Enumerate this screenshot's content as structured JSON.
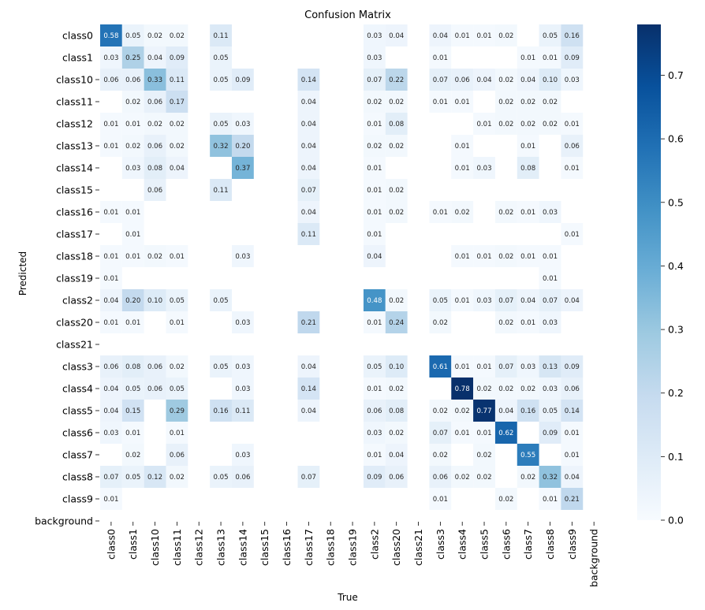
{
  "chart_data": {
    "type": "heatmap",
    "title": "Confusion Matrix",
    "xlabel": "True",
    "ylabel": "Predicted",
    "labels": [
      "class0",
      "class1",
      "class10",
      "class11",
      "class12",
      "class13",
      "class14",
      "class15",
      "class16",
      "class17",
      "class18",
      "class19",
      "class2",
      "class20",
      "class21",
      "class3",
      "class4",
      "class5",
      "class6",
      "class7",
      "class8",
      "class9",
      "background"
    ],
    "colormap": "Blues",
    "colors": {
      "low": "#f7fbff",
      "high": "#08306b"
    },
    "colorbar": {
      "min": 0.0,
      "max": 0.78,
      "ticks": [
        "0.0",
        "0.1",
        "0.2",
        "0.3",
        "0.4",
        "0.5",
        "0.6",
        "0.7"
      ]
    },
    "matrix": [
      [
        "0.58",
        "0.05",
        "0.02",
        "0.02",
        "",
        "0.11",
        "",
        "",
        "",
        "",
        "",
        "",
        "0.03",
        "0.04",
        "",
        "0.04",
        "0.01",
        "0.01",
        "0.02",
        "",
        "0.05",
        "0.16",
        ""
      ],
      [
        "0.03",
        "0.25",
        "0.04",
        "0.09",
        "",
        "0.05",
        "",
        "",
        "",
        "",
        "",
        "",
        "0.03",
        "",
        "",
        "0.01",
        "",
        "",
        "",
        "0.01",
        "0.01",
        "0.09",
        ""
      ],
      [
        "0.06",
        "0.06",
        "0.33",
        "0.11",
        "",
        "0.05",
        "0.09",
        "",
        "",
        "0.14",
        "",
        "",
        "0.07",
        "0.22",
        "",
        "0.07",
        "0.06",
        "0.04",
        "0.02",
        "0.04",
        "0.10",
        "0.03",
        ""
      ],
      [
        "",
        "0.02",
        "0.06",
        "0.17",
        "",
        "",
        "",
        "",
        "",
        "0.04",
        "",
        "",
        "0.02",
        "0.02",
        "",
        "0.01",
        "0.01",
        "",
        "0.02",
        "0.02",
        "0.02",
        "",
        ""
      ],
      [
        "0.01",
        "0.01",
        "0.02",
        "0.02",
        "",
        "0.05",
        "0.03",
        "",
        "",
        "0.04",
        "",
        "",
        "0.01",
        "0.08",
        "",
        "",
        "",
        "0.01",
        "0.02",
        "0.02",
        "0.02",
        "0.01",
        ""
      ],
      [
        "0.01",
        "0.02",
        "0.06",
        "0.02",
        "",
        "0.32",
        "0.20",
        "",
        "",
        "0.04",
        "",
        "",
        "0.02",
        "0.02",
        "",
        "",
        "0.01",
        "",
        "",
        "0.01",
        "",
        "0.06",
        ""
      ],
      [
        "",
        "0.03",
        "0.08",
        "0.04",
        "",
        "",
        "0.37",
        "",
        "",
        "0.04",
        "",
        "",
        "0.01",
        "",
        "",
        "",
        "0.01",
        "0.03",
        "",
        "0.08",
        "",
        "0.01",
        ""
      ],
      [
        "",
        "",
        "0.06",
        "",
        "",
        "0.11",
        "",
        "",
        "",
        "0.07",
        "",
        "",
        "0.01",
        "0.02",
        "",
        "",
        "",
        "",
        "",
        "",
        "",
        "",
        ""
      ],
      [
        "0.01",
        "0.01",
        "",
        "",
        "",
        "",
        "",
        "",
        "",
        "0.04",
        "",
        "",
        "0.01",
        "0.02",
        "",
        "0.01",
        "0.02",
        "",
        "0.02",
        "0.01",
        "0.03",
        "",
        ""
      ],
      [
        "",
        "0.01",
        "",
        "",
        "",
        "",
        "",
        "",
        "",
        "0.11",
        "",
        "",
        "0.01",
        "",
        "",
        "",
        "",
        "",
        "",
        "",
        "",
        "0.01",
        ""
      ],
      [
        "0.01",
        "0.01",
        "0.02",
        "0.01",
        "",
        "",
        "0.03",
        "",
        "",
        "",
        "",
        "",
        "0.04",
        "",
        "",
        "",
        "0.01",
        "0.01",
        "0.02",
        "0.01",
        "0.01",
        "",
        ""
      ],
      [
        "0.01",
        "",
        "",
        "",
        "",
        "",
        "",
        "",
        "",
        "",
        "",
        "",
        "",
        "",
        "",
        "",
        "",
        "",
        "",
        "",
        "0.01",
        "",
        ""
      ],
      [
        "0.04",
        "0.20",
        "0.10",
        "0.05",
        "",
        "0.05",
        "",
        "",
        "",
        "",
        "",
        "",
        "0.48",
        "0.02",
        "",
        "0.05",
        "0.01",
        "0.03",
        "0.07",
        "0.04",
        "0.07",
        "0.04",
        ""
      ],
      [
        "0.01",
        "0.01",
        "",
        "0.01",
        "",
        "",
        "0.03",
        "",
        "",
        "0.21",
        "",
        "",
        "0.01",
        "0.24",
        "",
        "0.02",
        "",
        "",
        "0.02",
        "0.01",
        "0.03",
        "",
        ""
      ],
      [
        "",
        "",
        "",
        "",
        "",
        "",
        "",
        "",
        "",
        "",
        "",
        "",
        "",
        "",
        "",
        "",
        "",
        "",
        "",
        "",
        "",
        "",
        ""
      ],
      [
        "0.06",
        "0.08",
        "0.06",
        "0.02",
        "",
        "0.05",
        "0.03",
        "",
        "",
        "0.04",
        "",
        "",
        "0.05",
        "0.10",
        "",
        "0.61",
        "0.01",
        "0.01",
        "0.07",
        "0.03",
        "0.13",
        "0.09",
        ""
      ],
      [
        "0.04",
        "0.05",
        "0.06",
        "0.05",
        "",
        "",
        "0.03",
        "",
        "",
        "0.14",
        "",
        "",
        "0.01",
        "0.02",
        "",
        "",
        "0.78",
        "0.02",
        "0.02",
        "0.02",
        "0.03",
        "0.06",
        ""
      ],
      [
        "0.04",
        "0.15",
        "",
        "0.29",
        "",
        "0.16",
        "0.11",
        "",
        "",
        "0.04",
        "",
        "",
        "0.06",
        "0.08",
        "",
        "0.02",
        "0.02",
        "0.77",
        "0.04",
        "0.16",
        "0.05",
        "0.14",
        ""
      ],
      [
        "0.03",
        "0.01",
        "",
        "0.01",
        "",
        "",
        "",
        "",
        "",
        "",
        "",
        "",
        "0.03",
        "0.02",
        "",
        "0.07",
        "0.01",
        "0.01",
        "0.62",
        "",
        "0.09",
        "0.01",
        ""
      ],
      [
        "",
        "0.02",
        "",
        "0.06",
        "",
        "",
        "0.03",
        "",
        "",
        "",
        "",
        "",
        "0.01",
        "0.04",
        "",
        "0.02",
        "",
        "0.02",
        "",
        "0.55",
        "",
        "0.01",
        ""
      ],
      [
        "0.07",
        "0.05",
        "0.12",
        "0.02",
        "",
        "0.05",
        "0.06",
        "",
        "",
        "0.07",
        "",
        "",
        "0.09",
        "0.06",
        "",
        "0.06",
        "0.02",
        "0.02",
        "",
        "0.02",
        "0.32",
        "0.04",
        ""
      ],
      [
        "0.01",
        "",
        "",
        "",
        "",
        "",
        "",
        "",
        "",
        "",
        "",
        "",
        "",
        "",
        "",
        "0.01",
        "",
        "",
        "0.02",
        "",
        "0.01",
        "0.21",
        ""
      ],
      [
        "",
        "",
        "",
        "",
        "",
        "",
        "",
        "",
        "",
        "",
        "",
        "",
        "",
        "",
        "",
        "",
        "",
        "",
        "",
        "",
        "",
        "",
        ""
      ]
    ],
    "row_dash_labels": [
      2,
      3,
      5,
      6,
      7,
      8,
      9,
      10,
      11,
      12,
      13,
      14,
      15,
      16,
      17,
      18,
      19,
      20,
      21,
      22
    ]
  }
}
